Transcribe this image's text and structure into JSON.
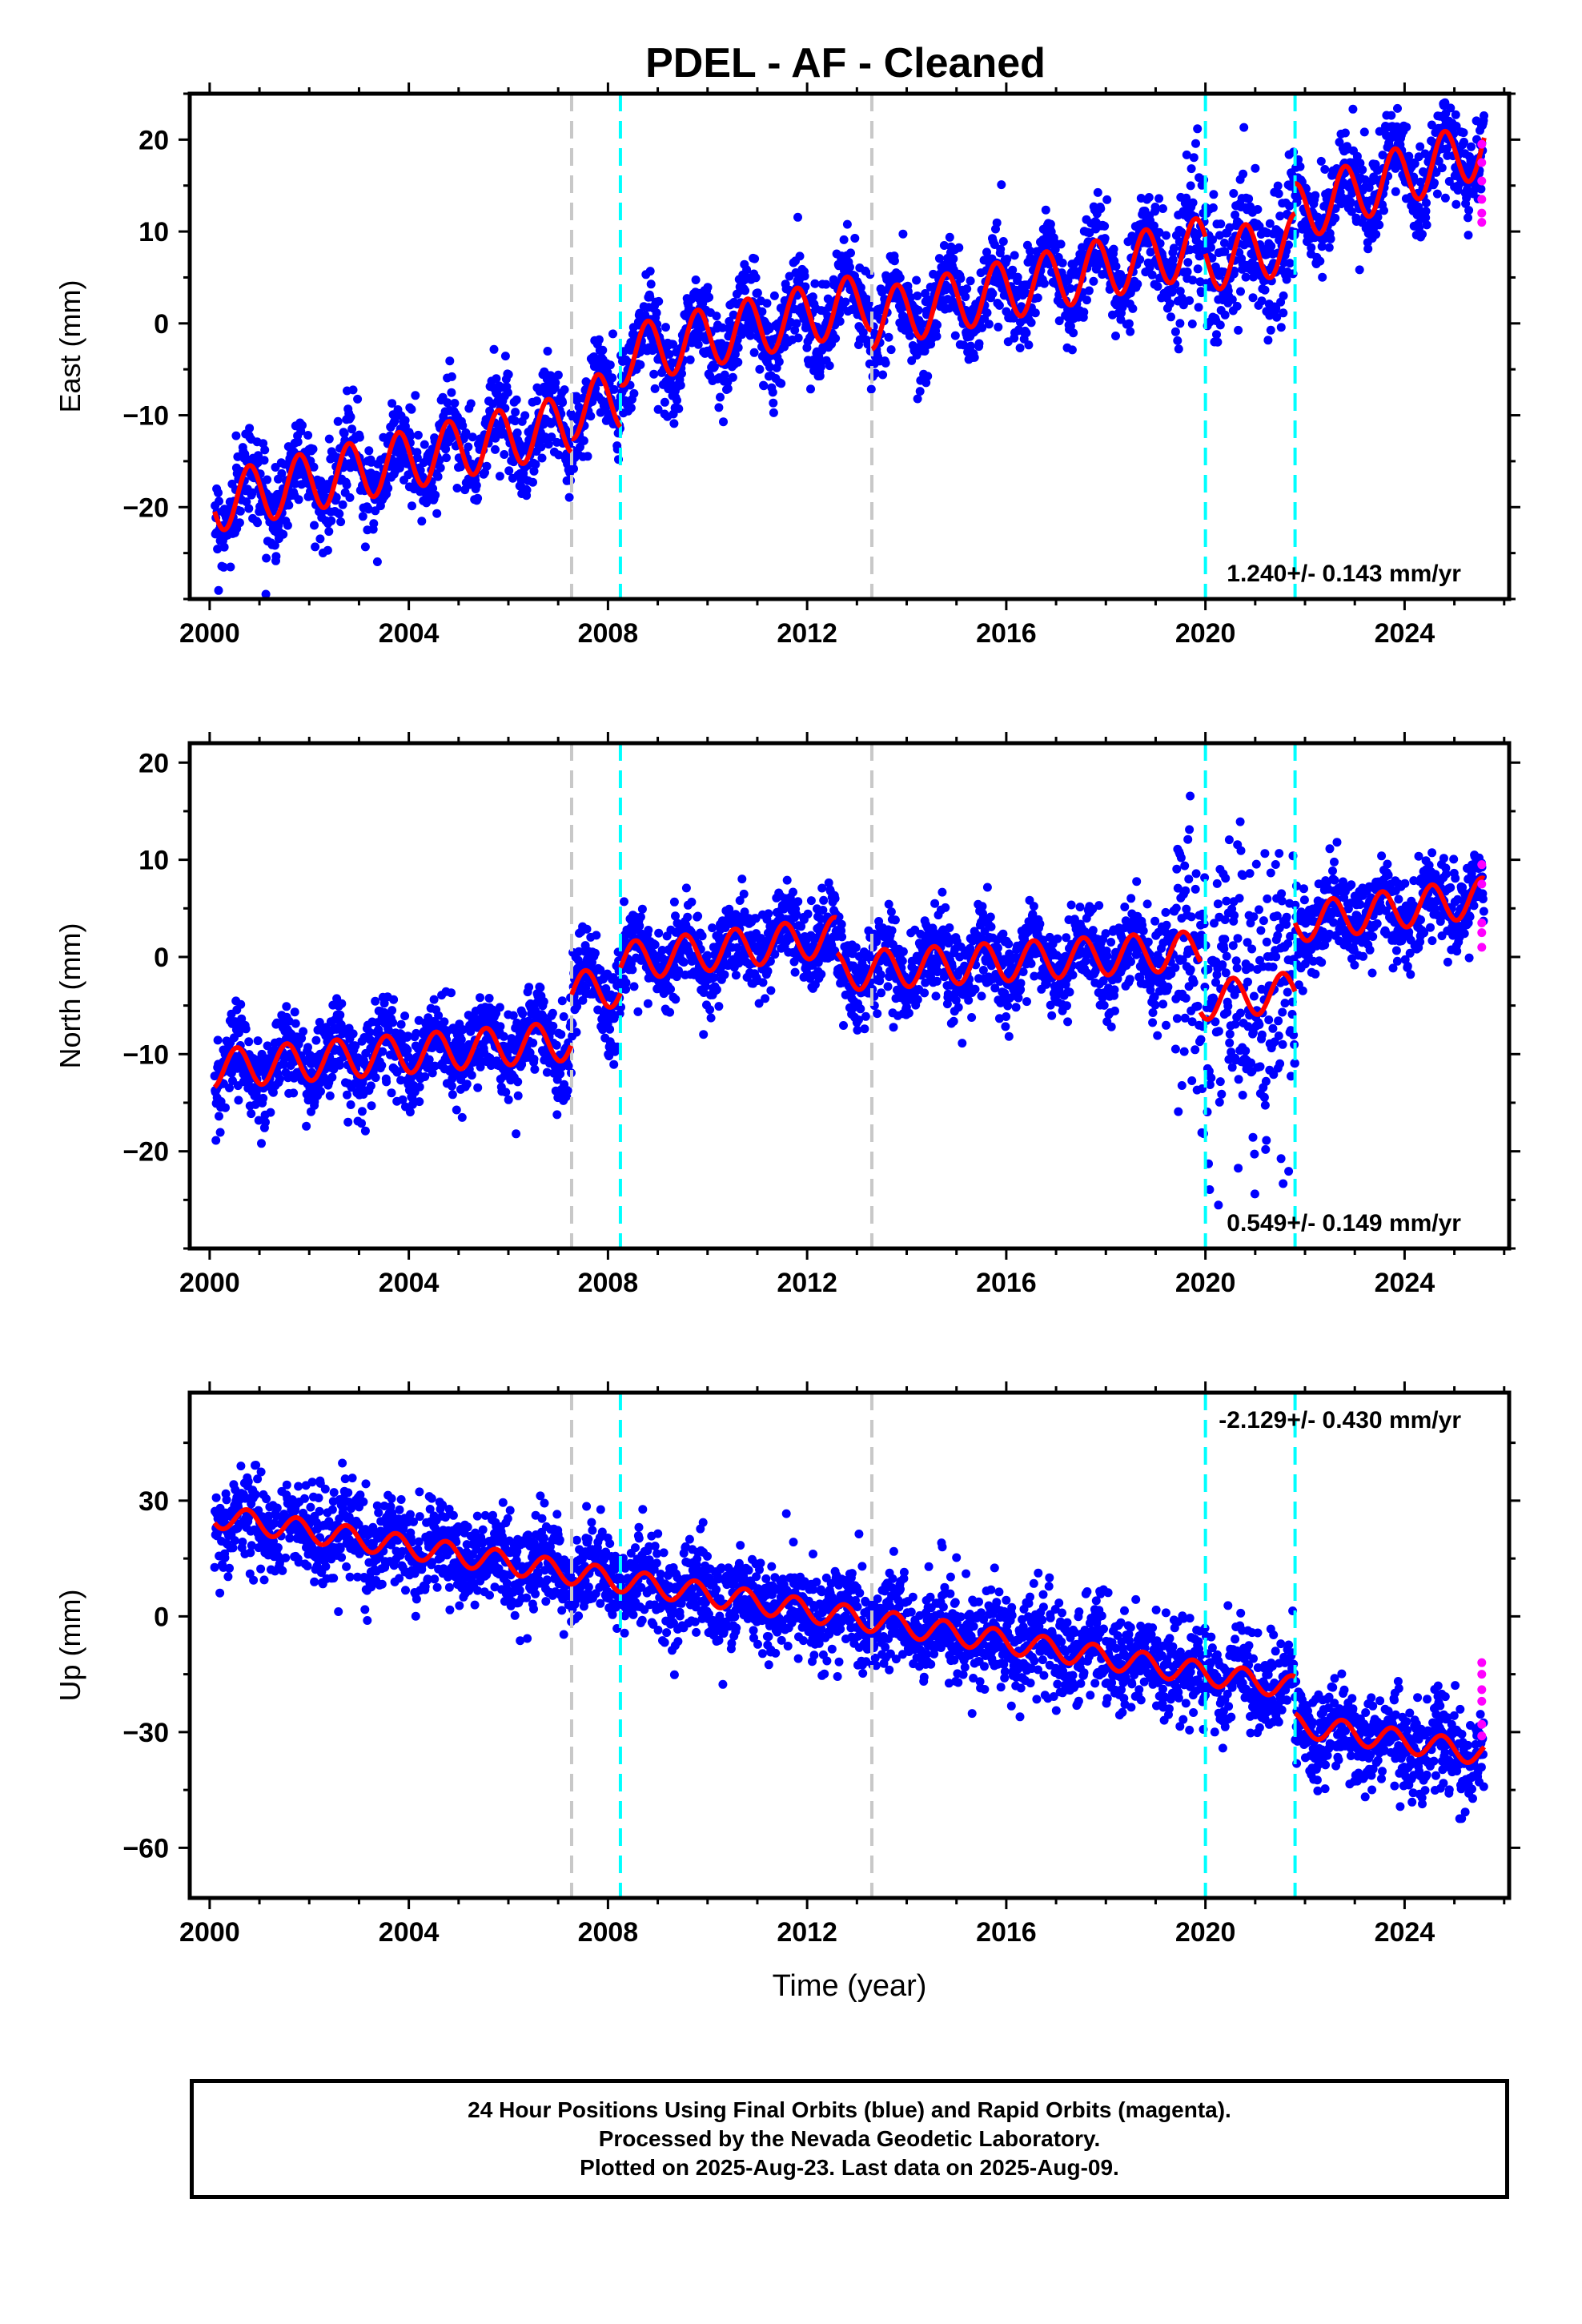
{
  "title": "PDEL  - AF - Cleaned",
  "footer": {
    "line1": "24 Hour Positions Using Final Orbits (blue) and Rapid Orbits (magenta).",
    "line2": "Processed by the Nevada Geodetic Laboratory.",
    "line3": "Plotted on 2025-Aug-23. Last data on 2025-Aug-09."
  },
  "colors": {
    "final_orbits": "#0000ff",
    "rapid_orbits": "#ff00ff",
    "model_fit": "#ff0000",
    "gray_event_lines": "#c8c8c8",
    "cyan_event_lines": "#00ffff"
  },
  "chart_data": [
    {
      "type": "scatter",
      "ylabel": "East (mm)",
      "xlabel": "",
      "xlim": [
        1999.6,
        2026.1
      ],
      "ylim": [
        -30,
        25
      ],
      "xticks": [
        2000,
        2004,
        2008,
        2012,
        2016,
        2020,
        2024
      ],
      "yticks": [
        -20,
        -10,
        0,
        10,
        20
      ],
      "rate_label": "1.240+/- 0.143 mm/yr",
      "rate_position": "bottom-right",
      "gray_event_lines": [
        2007.27,
        2013.3
      ],
      "cyan_event_lines": [
        2008.25,
        2020.0,
        2021.8
      ],
      "model": {
        "segments": [
          {
            "start": 2000.1,
            "end": 2007.27,
            "y0": -19.5,
            "slope": 1.2
          },
          {
            "start": 2007.27,
            "end": 2008.25,
            "y0": -9.4,
            "slope": 1.2
          },
          {
            "start": 2008.25,
            "end": 2013.3,
            "y0": -3.6,
            "slope": 1.2
          },
          {
            "start": 2013.3,
            "end": 2020.0,
            "y0": 0.4,
            "slope": 1.2
          },
          {
            "start": 2020.0,
            "end": 2021.8,
            "y0": 6.6,
            "slope": 1.2
          },
          {
            "start": 2021.8,
            "end": 2025.6,
            "y0": 12.0,
            "slope": 1.9
          }
        ],
        "seasonal_amplitude": 3.2,
        "seasonal_phase": 0.55
      },
      "scatter_sigma": 2.4,
      "rapid_points": [
        {
          "x": 2025.55,
          "y": 19.5
        },
        {
          "x": 2025.55,
          "y": 17.5
        },
        {
          "x": 2025.55,
          "y": 15.5
        },
        {
          "x": 2025.55,
          "y": 13.5
        },
        {
          "x": 2025.55,
          "y": 12.0
        },
        {
          "x": 2025.55,
          "y": 11.0
        }
      ]
    },
    {
      "type": "scatter",
      "ylabel": "North (mm)",
      "xlabel": "",
      "xlim": [
        1999.6,
        2026.1
      ],
      "ylim": [
        -30,
        22
      ],
      "xticks": [
        2000,
        2004,
        2008,
        2012,
        2016,
        2020,
        2024
      ],
      "yticks": [
        -20,
        -10,
        0,
        10,
        20
      ],
      "rate_label": "0.549+/- 0.149 mm/yr",
      "rate_position": "bottom-right",
      "gray_event_lines": [
        2007.27,
        2013.3
      ],
      "cyan_event_lines": [
        2008.25,
        2020.0,
        2021.8
      ],
      "model": {
        "segments": [
          {
            "start": 2000.1,
            "end": 2007.27,
            "y0": -11.5,
            "slope": 0.4
          },
          {
            "start": 2007.27,
            "end": 2008.25,
            "y0": -3.5,
            "slope": 0.4
          },
          {
            "start": 2008.25,
            "end": 2012.6,
            "y0": -0.5,
            "slope": 0.6
          },
          {
            "start": 2012.6,
            "end": 2019.9,
            "y0": -1.5,
            "slope": 0.3
          },
          {
            "start": 2019.9,
            "end": 2021.8,
            "y0": -4.5,
            "slope": 0.5
          },
          {
            "start": 2021.8,
            "end": 2025.6,
            "y0": 3.5,
            "slope": 0.7
          }
        ],
        "seasonal_amplitude": 2.0,
        "seasonal_phase": 0.3
      },
      "scatter_sigma": 2.2,
      "rapid_points": [
        {
          "x": 2025.55,
          "y": 9.5
        },
        {
          "x": 2025.55,
          "y": 7.5
        },
        {
          "x": 2025.55,
          "y": 3.5
        },
        {
          "x": 2025.55,
          "y": 2.5
        },
        {
          "x": 2025.55,
          "y": 1.0
        }
      ]
    },
    {
      "type": "scatter",
      "ylabel": "Up (mm)",
      "xlabel": "Time (year)",
      "xlim": [
        1999.6,
        2026.1
      ],
      "ylim": [
        -73,
        58
      ],
      "xticks": [
        2000,
        2004,
        2008,
        2012,
        2016,
        2020,
        2024
      ],
      "yticks": [
        -60,
        -30,
        0,
        30
      ],
      "rate_label": "-2.129+/- 0.430 mm/yr",
      "rate_position": "top-right",
      "gray_event_lines": [
        2007.27,
        2013.3
      ],
      "cyan_event_lines": [
        2008.25,
        2020.0,
        2021.8
      ],
      "model": {
        "segments": [
          {
            "start": 2000.1,
            "end": 2021.8,
            "y0": 26.0,
            "slope": -2.05
          },
          {
            "start": 2021.8,
            "end": 2025.6,
            "y0": -28.0,
            "slope": -2.0
          }
        ],
        "seasonal_amplitude": 3.0,
        "seasonal_phase": 0.5
      },
      "scatter_sigma": 6.0,
      "rapid_points": [
        {
          "x": 2025.55,
          "y": -12.0
        },
        {
          "x": 2025.55,
          "y": -15.0
        },
        {
          "x": 2025.55,
          "y": -19.0
        },
        {
          "x": 2025.55,
          "y": -22.0
        },
        {
          "x": 2025.55,
          "y": -28.0
        },
        {
          "x": 2025.55,
          "y": -31.0
        }
      ]
    }
  ]
}
